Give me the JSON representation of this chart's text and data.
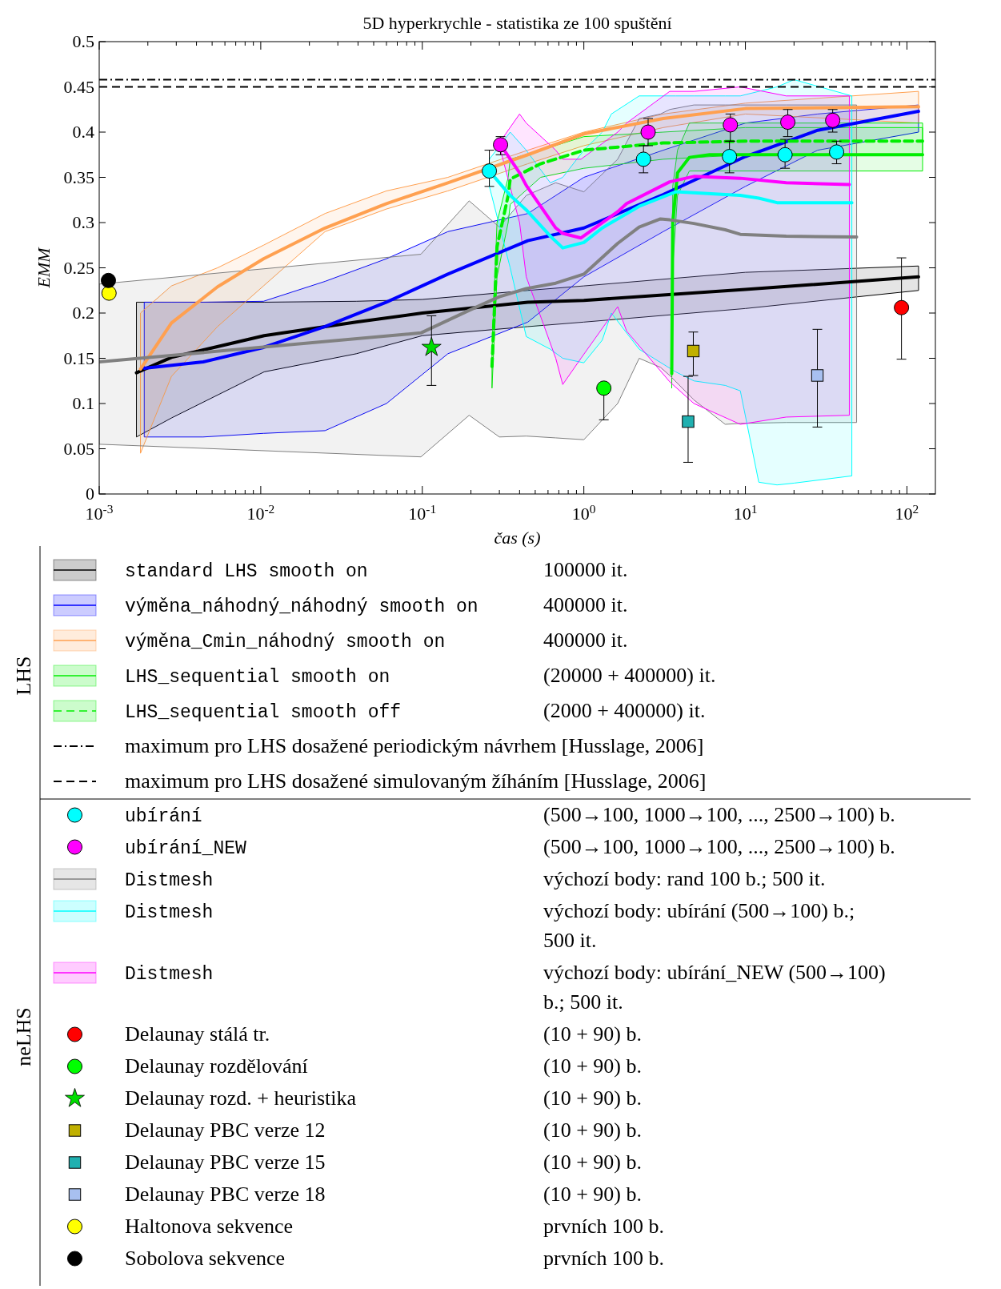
{
  "chart_data": {
    "type": "line",
    "title": "5D hyperkrychle - statistika ze 100 spuštění",
    "xlabel": "čas (s)",
    "ylabel": "EMM",
    "log": "x",
    "legend": "bottom",
    "xlim": [
      0.001,
      150
    ],
    "ylim": [
      0,
      0.5
    ],
    "xticks": [
      {
        "value": 0.001,
        "label": "10$^{-3}$"
      },
      {
        "value": 0.002,
        "label": null
      },
      {
        "value": 0.003,
        "label": null
      },
      {
        "value": 0.004,
        "label": null
      },
      {
        "value": 0.005,
        "label": null
      },
      {
        "value": 0.006,
        "label": null
      },
      {
        "value": 0.007,
        "label": null
      },
      {
        "value": 0.008,
        "label": null
      },
      {
        "value": 0.009,
        "label": null
      },
      {
        "value": 0.01,
        "label": "10$^{-2}$"
      },
      {
        "value": 0.02,
        "label": null
      },
      {
        "value": 0.03,
        "label": null
      },
      {
        "value": 0.04,
        "label": null
      },
      {
        "value": 0.05,
        "label": null
      },
      {
        "value": 0.06,
        "label": null
      },
      {
        "value": 0.07,
        "label": null
      },
      {
        "value": 0.08,
        "label": null
      },
      {
        "value": 0.09,
        "label": null
      },
      {
        "value": 0.1,
        "label": "10$^{-1}$"
      },
      {
        "value": 0.2,
        "label": null
      },
      {
        "value": 0.3,
        "label": null
      },
      {
        "value": 0.4,
        "label": null
      },
      {
        "value": 0.5,
        "label": null
      },
      {
        "value": 0.6,
        "label": null
      },
      {
        "value": 0.7,
        "label": null
      },
      {
        "value": 0.8,
        "label": null
      },
      {
        "value": 0.9,
        "label": null
      },
      {
        "value": 1,
        "label": "10$^{0}$"
      },
      {
        "value": 2,
        "label": null
      },
      {
        "value": 3,
        "label": null
      },
      {
        "value": 4,
        "label": null
      },
      {
        "value": 5,
        "label": null
      },
      {
        "value": 6,
        "label": null
      },
      {
        "value": 7,
        "label": null
      },
      {
        "value": 8,
        "label": null
      },
      {
        "value": 9,
        "label": null
      },
      {
        "value": 10,
        "label": "10$^{1}$"
      },
      {
        "value": 20,
        "label": null
      },
      {
        "value": 30,
        "label": null
      },
      {
        "value": 40,
        "label": null
      },
      {
        "value": 50,
        "label": null
      },
      {
        "value": 60,
        "label": null
      },
      {
        "value": 70,
        "label": null
      },
      {
        "value": 80,
        "label": null
      },
      {
        "value": 90,
        "label": null
      },
      {
        "value": 100,
        "label": "10$^{2}$"
      }
    ],
    "yticks": [
      0,
      0.05,
      0.1,
      0.15,
      0.2,
      0.25,
      0.3,
      0.35,
      0.4,
      0.45,
      0.5
    ],
    "series": [
      {
        "name": "standard LHS smooth on",
        "color": "#000000",
        "x": [
          0.0017,
          0.0028,
          0.0105,
          0.039,
          0.1,
          0.45,
          1,
          10,
          118
        ],
        "values": [
          0.134,
          0.151,
          0.175,
          0.19,
          0.2,
          0.212,
          0.214,
          0.226,
          0.24
        ],
        "lower": [
          0.063,
          0.084,
          0.135,
          0.155,
          0.175,
          0.185,
          0.19,
          0.205,
          0.225
        ],
        "upper": [
          0.212,
          0.212,
          0.212,
          0.213,
          0.215,
          0.225,
          0.23,
          0.245,
          0.252
        ]
      },
      {
        "name": "výměna_náhodný_náhodný smooth on",
        "color": "#0000ff",
        "x": [
          0.0019,
          0.0044,
          0.0104,
          0.025,
          0.06,
          0.144,
          0.45,
          1,
          3.1,
          10,
          28,
          118
        ],
        "values": [
          0.139,
          0.146,
          0.162,
          0.185,
          0.212,
          0.243,
          0.28,
          0.294,
          0.331,
          0.373,
          0.402,
          0.423
        ],
        "lower": [
          0.063,
          0.063,
          0.067,
          0.07,
          0.1,
          0.155,
          0.19,
          0.24,
          0.29,
          0.34,
          0.38,
          0.4
        ],
        "upper": [
          0.212,
          0.212,
          0.213,
          0.235,
          0.26,
          0.29,
          0.31,
          0.35,
          0.38,
          0.41,
          0.42,
          0.43
        ]
      },
      {
        "name": "výměna_Cmin_náhodný smooth on",
        "color": "#ffa050",
        "x": [
          0.0018,
          0.0028,
          0.0054,
          0.0104,
          0.025,
          0.06,
          0.144,
          0.45,
          1,
          3.1,
          10,
          118
        ],
        "values": [
          0.138,
          0.189,
          0.229,
          0.26,
          0.294,
          0.321,
          0.344,
          0.375,
          0.398,
          0.415,
          0.426,
          0.428
        ],
        "lower": [
          0.045,
          0.13,
          0.185,
          0.23,
          0.29,
          0.315,
          0.335,
          0.365,
          0.385,
          0.405,
          0.42,
          0.41
        ],
        "upper": [
          0.2,
          0.23,
          0.25,
          0.275,
          0.31,
          0.335,
          0.35,
          0.38,
          0.4,
          0.42,
          0.432,
          0.445
        ]
      },
      {
        "name": "LHS_sequential smooth on",
        "color": "#00ee00",
        "x": [
          3.5,
          3.55,
          3.8,
          4.5,
          6,
          125
        ],
        "values": [
          0.133,
          0.3,
          0.355,
          0.372,
          0.375,
          0.375
        ],
        "lower": [
          0.117,
          0.25,
          0.33,
          0.357,
          0.357,
          0.357
        ],
        "upper": [
          0.15,
          0.34,
          0.38,
          0.41,
          0.41,
          0.41
        ]
      },
      {
        "name": "LHS_sequential smooth off",
        "color": "#00ee00",
        "line_style": "dashed",
        "x": [
          0.27,
          0.29,
          0.34,
          0.35,
          0.54,
          1,
          3.1,
          10,
          125
        ],
        "values": [
          0.141,
          0.273,
          0.33,
          0.348,
          0.365,
          0.38,
          0.388,
          0.39,
          0.39
        ],
        "lower": [
          0.117,
          0.24,
          0.3,
          0.32,
          0.35,
          0.36,
          0.37,
          0.375,
          0.375
        ],
        "upper": [
          0.16,
          0.3,
          0.35,
          0.37,
          0.38,
          0.395,
          0.4,
          0.405,
          0.405
        ]
      },
      {
        "name": "ubírání",
        "type": "scatter",
        "marker": "circle",
        "color": "#00ffff",
        "x": [
          0.26,
          2.34,
          7.97,
          17.6,
          36.7
        ],
        "values": [
          0.357,
          0.37,
          0.373,
          0.375,
          0.378
        ],
        "errors": [
          [
            0.34,
            0.38
          ],
          [
            0.355,
            0.385
          ],
          [
            0.355,
            0.39
          ],
          [
            0.36,
            0.392
          ],
          [
            0.365,
            0.39
          ]
        ]
      },
      {
        "name": "ubírání_NEW",
        "type": "scatter",
        "marker": "circle",
        "color": "#ff00ff",
        "x": [
          0.305,
          2.5,
          8.07,
          18.3,
          34.7
        ],
        "values": [
          0.386,
          0.4,
          0.408,
          0.411,
          0.413
        ],
        "errors": [
          [
            0.375,
            0.395
          ],
          [
            0.385,
            0.415
          ],
          [
            0.39,
            0.42
          ],
          [
            0.395,
            0.425
          ],
          [
            0.4,
            0.425
          ]
        ]
      },
      {
        "name": "Distmesh",
        "color": "#808080",
        "x": [
          0.001,
          0.098,
          0.195,
          0.3,
          0.44,
          0.67,
          1,
          1.62,
          2.2,
          2.98,
          3.4,
          4.8,
          7.5,
          9.3,
          17.9,
          48.8
        ],
        "values": [
          0.146,
          0.178,
          0.203,
          0.218,
          0.227,
          0.233,
          0.243,
          0.277,
          0.295,
          0.304,
          0.303,
          0.299,
          0.292,
          0.287,
          0.285,
          0.284
        ],
        "lower": [
          0.055,
          0.041,
          0.087,
          0.063,
          0.064,
          0.062,
          0.06,
          0.1,
          0.15,
          0.14,
          0.131,
          0.104,
          0.077,
          0.078,
          0.079,
          0.079
        ],
        "upper": [
          0.232,
          0.265,
          0.324,
          0.295,
          0.33,
          0.344,
          0.334,
          0.37,
          0.415,
          0.42,
          0.425,
          0.43,
          0.43,
          0.43,
          0.43,
          0.43
        ]
      },
      {
        "name": "Distmesh",
        "color": "#00ffff",
        "x": [
          0.26,
          0.35,
          0.44,
          0.62,
          0.74,
          1,
          1.3,
          1.48,
          2.2,
          3.7,
          4.8,
          7.5,
          9.3,
          12.1,
          15.7,
          20,
          45.6
        ],
        "values": [
          0.357,
          0.33,
          0.314,
          0.285,
          0.272,
          0.278,
          0.294,
          0.3,
          0.318,
          0.334,
          0.333,
          0.331,
          0.33,
          0.327,
          0.322,
          0.322,
          0.322
        ],
        "lower": [
          0.34,
          0.25,
          0.174,
          0.16,
          0.15,
          0.145,
          0.17,
          0.2,
          0.16,
          0.135,
          0.125,
          0.12,
          0.114,
          0.013,
          0.01,
          0.012,
          0.02
        ],
        "upper": [
          0.37,
          0.4,
          0.38,
          0.344,
          0.35,
          0.38,
          0.4,
          0.42,
          0.44,
          0.44,
          0.44,
          0.44,
          0.44,
          0.445,
          0.45,
          0.458,
          0.44
        ]
      },
      {
        "name": "Distmesh",
        "color": "#ff00ff",
        "x": [
          0.305,
          0.4,
          0.44,
          0.67,
          0.74,
          0.96,
          1.62,
          1.84,
          3.4,
          4.8,
          9.3,
          17.9,
          44
        ],
        "values": [
          0.386,
          0.355,
          0.341,
          0.294,
          0.288,
          0.283,
          0.312,
          0.321,
          0.345,
          0.351,
          0.349,
          0.344,
          0.342
        ],
        "lower": [
          0.38,
          0.3,
          0.24,
          0.15,
          0.121,
          0.15,
          0.207,
          0.18,
          0.124,
          0.1,
          0.077,
          0.085,
          0.087
        ],
        "upper": [
          0.39,
          0.42,
          0.41,
          0.38,
          0.37,
          0.37,
          0.4,
          0.41,
          0.445,
          0.445,
          0.45,
          0.44,
          0.44
        ]
      },
      {
        "name": "Delaunay stálá tr.",
        "type": "scatter",
        "marker": "circle",
        "color": "#ff0000",
        "x": [
          92.5
        ],
        "values": [
          0.206
        ],
        "errors": [
          [
            0.149,
            0.261
          ]
        ]
      },
      {
        "name": "Delaunay rozdělování",
        "type": "scatter",
        "marker": "circle",
        "color": "#00ff00",
        "x": [
          1.33
        ],
        "values": [
          0.117
        ],
        "errors": [
          [
            0.082,
            0.117
          ]
        ]
      },
      {
        "name": "Delaunay rozd. + heuristika",
        "type": "scatter",
        "marker": "star",
        "color": "#00dd00",
        "x": [
          0.114
        ],
        "values": [
          0.162
        ],
        "errors": [
          [
            0.12,
            0.197
          ]
        ]
      },
      {
        "name": "Delaunay PBC verze 12",
        "type": "scatter",
        "marker": "square",
        "color": "#c0b000",
        "x": [
          4.76
        ],
        "values": [
          0.158
        ],
        "errors": [
          [
            0.131,
            0.179
          ]
        ]
      },
      {
        "name": "Delaunay PBC verze 15",
        "type": "scatter",
        "marker": "square",
        "color": "#20b0b0",
        "x": [
          4.42
        ],
        "values": [
          0.08
        ],
        "errors": [
          [
            0.035,
            0.13
          ]
        ]
      },
      {
        "name": "Delaunay PBC verze 18",
        "type": "scatter",
        "marker": "square",
        "color": "#a8c0f0",
        "x": [
          27.9
        ],
        "values": [
          0.131
        ],
        "errors": [
          [
            0.074,
            0.182
          ]
        ]
      },
      {
        "name": "Haltonova sekvence",
        "type": "scatter",
        "marker": "circle",
        "color": "#ffff00",
        "x": [
          0.00115
        ],
        "values": [
          0.222
        ]
      },
      {
        "name": "Sobolova sekvence",
        "type": "scatter",
        "marker": "circle",
        "color": "#000000",
        "x": [
          0.00114
        ],
        "values": [
          0.236
        ]
      }
    ],
    "ref_lines": [
      {
        "axis": "y",
        "value": 0.458,
        "label": "maximum pro LHS dosažené periodickým návrhem [Husslage, 2006]",
        "line_style": "dashdot",
        "color": "#000000"
      },
      {
        "axis": "y",
        "value": 0.45,
        "label": "maximum pro LHS dosažené simulovaným žíháním [Husslage, 2006]",
        "line_style": "dashed",
        "color": "#000000"
      }
    ],
    "annotations": [
      "LHS",
      "neLHS",
      "100000 it.",
      "400000 it.",
      "400000 it.",
      "(20000 + 400000) it.",
      "(2000 + 400000) it.",
      "(500→100, 1000→100, ..., 2500→100) b.",
      "(500→100, 1000→100, ..., 2500→100) b.",
      "výchozí body: rand 100 b.; 500 it.",
      "výchozí body: ubírání (500→100) b.; 500 it.",
      "výchozí body: ubírání_NEW (500→100) b.; 500 it.",
      "(10 + 90) b.",
      "(10 + 90) b.",
      "(10 + 90) b.",
      "(10 + 90) b.",
      "(10 + 90) b.",
      "(10 + 90) b.",
      "prvních 100 b.",
      "prvních 100 b."
    ]
  }
}
